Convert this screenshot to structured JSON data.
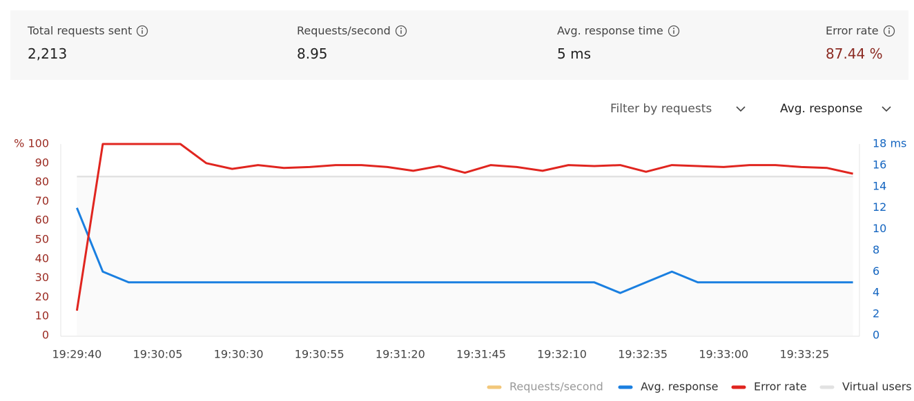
{
  "stats": [
    {
      "label": "Total requests sent",
      "value": "2,213"
    },
    {
      "label": "Requests/second",
      "value": "8.95"
    },
    {
      "label": "Avg. response time",
      "value": "5 ms"
    },
    {
      "label": "Error rate",
      "value": "87.44 %"
    }
  ],
  "filters": [
    "Filter by requests",
    "Avg. response"
  ],
  "chart_data": {
    "type": "line",
    "x": [
      "19:29:40",
      "19:29:48",
      "19:29:56",
      "19:30:04",
      "19:30:12",
      "19:30:20",
      "19:30:28",
      "19:30:36",
      "19:30:44",
      "19:30:52",
      "19:31:00",
      "19:31:08",
      "19:31:16",
      "19:31:24",
      "19:31:32",
      "19:31:40",
      "19:31:48",
      "19:31:56",
      "19:32:04",
      "19:32:12",
      "19:32:20",
      "19:32:28",
      "19:32:36",
      "19:32:44",
      "19:32:52",
      "19:33:00",
      "19:33:08",
      "19:33:16",
      "19:33:24",
      "19:33:32",
      "19:33:40"
    ],
    "xlim": [
      "19:29:35",
      "19:33:42"
    ],
    "xticks": [
      "19:29:40",
      "19:30:05",
      "19:30:30",
      "19:30:55",
      "19:31:20",
      "19:31:45",
      "19:32:10",
      "19:32:35",
      "19:33:00",
      "19:33:25"
    ],
    "ylim": [
      0,
      100
    ],
    "yticks": [
      0,
      10,
      20,
      30,
      40,
      50,
      60,
      70,
      80,
      90,
      {
        "value": 100,
        "label": "% 100"
      }
    ],
    "y2lim": [
      0,
      18
    ],
    "y2ticks": [
      0,
      2,
      4,
      6,
      8,
      10,
      12,
      14,
      16,
      {
        "value": 18,
        "label": "18 ms"
      }
    ],
    "series": [
      {
        "name": "Requests/second",
        "color": "#f2c77a",
        "hidden": true
      },
      {
        "name": "Avg. response",
        "color": "#1a7fe0",
        "axis": "y2",
        "values": [
          12,
          6,
          5,
          5,
          5,
          5,
          5,
          5,
          5,
          5,
          5,
          5,
          5,
          5,
          5,
          5,
          5,
          5,
          5,
          5,
          5,
          4,
          5,
          6,
          5,
          5,
          5,
          5,
          5,
          5,
          5
        ]
      },
      {
        "name": "Error rate",
        "color": "#e0251f",
        "values": [
          13,
          100,
          100,
          100,
          100,
          90,
          87,
          89,
          87.5,
          88,
          89,
          89,
          88,
          86,
          88.5,
          85,
          89,
          88,
          86,
          89,
          88.5,
          89,
          85.5,
          89,
          88.5,
          88,
          89,
          89,
          88,
          87.5,
          84.5
        ]
      },
      {
        "name": "Virtual users",
        "color": "#e2e2e2",
        "area": true,
        "values": [
          83,
          83,
          83,
          83,
          83,
          83,
          83,
          83,
          83,
          83,
          83,
          83,
          83,
          83,
          83,
          83,
          83,
          83,
          83,
          83,
          83,
          83,
          83,
          83,
          83,
          83,
          83,
          83,
          83,
          83,
          83
        ]
      }
    ]
  }
}
